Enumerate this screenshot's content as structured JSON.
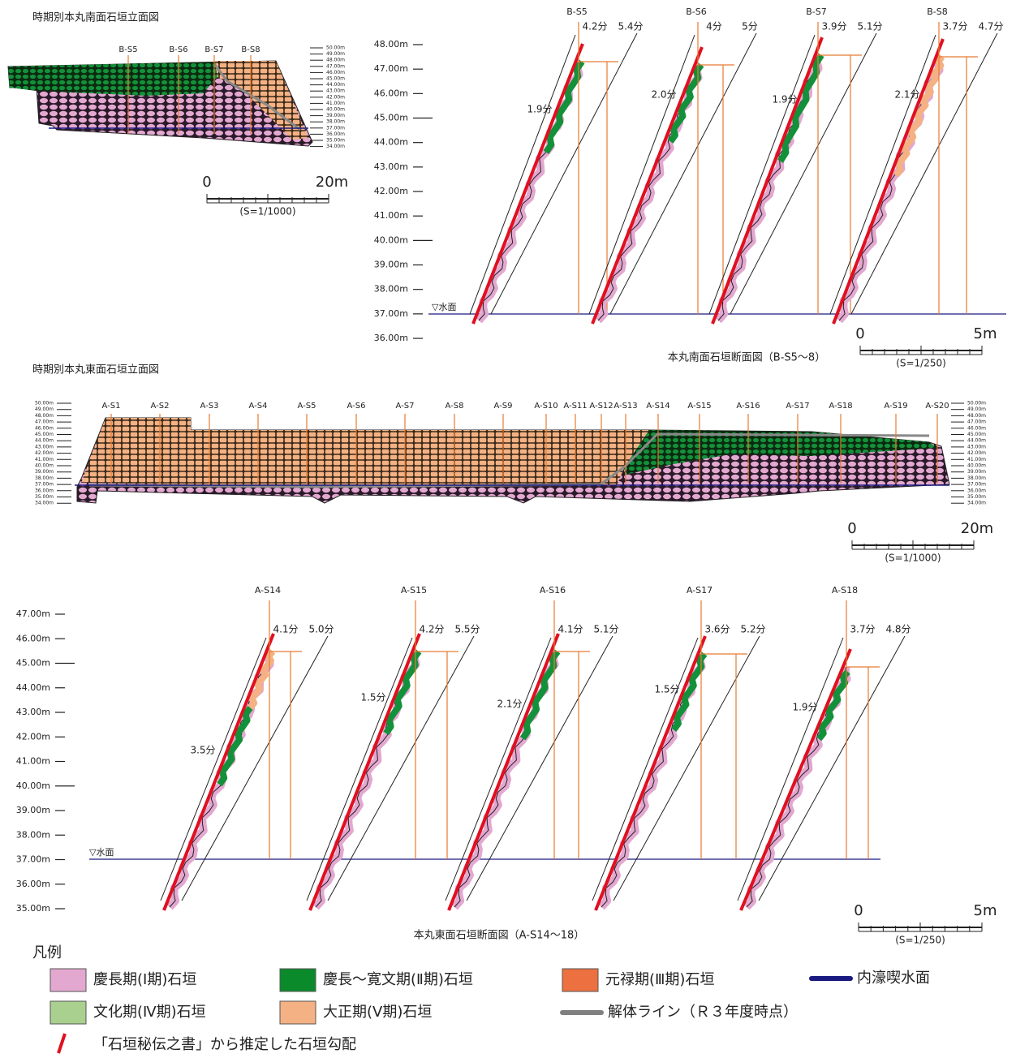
{
  "south_elevation": {
    "title": "時期別本丸南面石垣立面図",
    "sections": [
      "B-S5",
      "B-S6",
      "B-S7",
      "B-S8"
    ],
    "elevation_ticks": [
      "50.00m",
      "49.00m",
      "48.00m",
      "47.00m",
      "46.00m",
      "45.00m",
      "44.00m",
      "43.00m",
      "42.00m",
      "41.00m",
      "40.00m",
      "39.00m",
      "38.00m",
      "37.00m",
      "36.00m",
      "35.00m",
      "34.00m"
    ],
    "scale": {
      "start": "0",
      "end": "20m",
      "ratio": "(S=1/1000)"
    }
  },
  "south_sections": {
    "caption": "本丸南面石垣断面図（B-S5～8）",
    "level_ticks": [
      "48.00m",
      "47.00m",
      "46.00m",
      "45.00m",
      "44.00m",
      "43.00m",
      "42.00m",
      "41.00m",
      "40.00m",
      "39.00m",
      "38.00m",
      "37.00m",
      "36.00m"
    ],
    "water_label": "▽水面",
    "sections": [
      {
        "name": "B-S5",
        "upper_slopes": [
          "4.2分",
          "5.4分"
        ],
        "lower_slope": "1.9分"
      },
      {
        "name": "B-S6",
        "upper_slopes": [
          "4分",
          "5分"
        ],
        "lower_slope": "2.0分"
      },
      {
        "name": "B-S7",
        "upper_slopes": [
          "3.9分",
          "5.1分"
        ],
        "lower_slope": "1.9分"
      },
      {
        "name": "B-S8",
        "upper_slopes": [
          "3.7分",
          "4.7分"
        ],
        "lower_slope": "2.1分"
      }
    ],
    "scale": {
      "start": "0",
      "end": "5m",
      "ratio": "(S=1/250)"
    }
  },
  "east_elevation": {
    "title": "時期別本丸東面石垣立面図",
    "sections": [
      "A-S1",
      "A-S2",
      "A-S3",
      "A-S4",
      "A-S5",
      "A-S6",
      "A-S7",
      "A-S8",
      "A-S9",
      "A-S10",
      "A-S11",
      "A-S12",
      "A-S13",
      "A-S14",
      "A-S15",
      "A-S16",
      "A-S17",
      "A-S18",
      "A-S19",
      "A-S20"
    ],
    "elevation_ticks": [
      "50.00m",
      "49.00m",
      "48.00m",
      "47.00m",
      "46.00m",
      "45.00m",
      "44.00m",
      "43.00m",
      "42.00m",
      "41.00m",
      "40.00m",
      "39.00m",
      "38.00m",
      "37.00m",
      "36.00m",
      "35.00m",
      "34.00m"
    ],
    "scale": {
      "start": "0",
      "end": "20m",
      "ratio": "(S=1/1000)"
    }
  },
  "east_sections": {
    "caption": "本丸東面石垣断面図（A-S14～18）",
    "level_ticks": [
      "47.00m",
      "46.00m",
      "45.00m",
      "44.00m",
      "43.00m",
      "42.00m",
      "41.00m",
      "40.00m",
      "39.00m",
      "38.00m",
      "37.00m",
      "36.00m",
      "35.00m"
    ],
    "water_label": "▽水面",
    "sections": [
      {
        "name": "A-S14",
        "upper_slopes": [
          "4.1分",
          "5.0分"
        ],
        "lower_slope": "3.5分"
      },
      {
        "name": "A-S15",
        "upper_slopes": [
          "4.2分",
          "5.5分"
        ],
        "lower_slope": "1.5分"
      },
      {
        "name": "A-S16",
        "upper_slopes": [
          "4.1分",
          "5.1分"
        ],
        "lower_slope": "2.1分"
      },
      {
        "name": "A-S17",
        "upper_slopes": [
          "3.6分",
          "5.2分"
        ],
        "lower_slope": "1.5分"
      },
      {
        "name": "A-S18",
        "upper_slopes": [
          "3.7分",
          "4.8分"
        ],
        "lower_slope": "1.9分"
      }
    ],
    "scale": {
      "start": "0",
      "end": "5m",
      "ratio": "(S=1/250)"
    }
  },
  "legend": {
    "title": "凡例",
    "items": [
      {
        "label": "慶長期(Ⅰ期)石垣",
        "marker": "box",
        "color": "#e3a8d0"
      },
      {
        "label": "慶長～寛文期(Ⅱ期)石垣",
        "marker": "box",
        "color": "#0a8a2a"
      },
      {
        "label": "元禄期(Ⅲ期)石垣",
        "marker": "box",
        "color": "#ec7040"
      },
      {
        "label": "内濠喫水面",
        "marker": "line",
        "color": "#1a1a80"
      },
      {
        "label": "文化期(Ⅳ期)石垣",
        "marker": "box",
        "color": "#a9d08e"
      },
      {
        "label": "大正期(Ⅴ期)石垣",
        "marker": "box",
        "color": "#f4b183"
      },
      {
        "label": "解体ライン（Ｒ３年度時点）",
        "marker": "line",
        "color": "#808080"
      },
      {
        "label": "「石垣秘伝之書」から推定した石垣勾配",
        "marker": "slash",
        "color": "#e01020"
      }
    ]
  }
}
